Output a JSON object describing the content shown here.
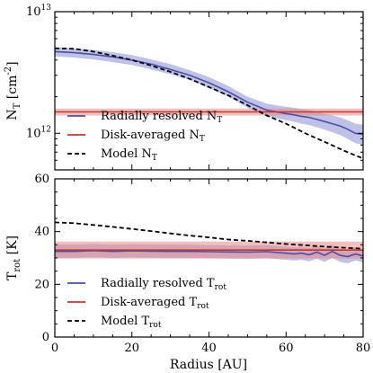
{
  "chart_data": [
    {
      "type": "line",
      "panel": "top",
      "ylabel": "N_T [cm^-2]",
      "yscale": "log",
      "ylim": [
        500000000000,
        10000000000000
      ],
      "xlim": [
        0,
        80
      ],
      "ytick_labels": [
        {
          "value": 10000000000000,
          "base": "10",
          "exp": "13"
        },
        {
          "value": 1000000000000,
          "base": "10",
          "exp": "12"
        }
      ],
      "legend_position": "lower-left",
      "series": [
        {
          "name": "Radially resolved N_T",
          "legend_base": "Radially resolved N",
          "legend_sub": "T",
          "color": "#4b4fa6",
          "band_color": "#8c8ed4",
          "style": "solid",
          "x": [
            0,
            5,
            10,
            15,
            20,
            25,
            30,
            35,
            40,
            45,
            50,
            55,
            60,
            62,
            64,
            66,
            68,
            70,
            72,
            74,
            76,
            78,
            80
          ],
          "y": [
            4700000000000.0,
            4600000000000.0,
            4450000000000.0,
            4250000000000.0,
            4000000000000.0,
            3700000000000.0,
            3350000000000.0,
            3000000000000.0,
            2600000000000.0,
            2200000000000.0,
            1800000000000.0,
            1550000000000.0,
            1450000000000.0,
            1420000000000.0,
            1380000000000.0,
            1350000000000.0,
            1300000000000.0,
            1250000000000.0,
            1200000000000.0,
            1150000000000.0,
            1080000000000.0,
            1000000000000.0,
            980000000000.0
          ],
          "y_low": [
            4300000000000.0,
            4200000000000.0,
            4050000000000.0,
            3850000000000.0,
            3650000000000.0,
            3350000000000.0,
            3050000000000.0,
            2750000000000.0,
            2350000000000.0,
            2000000000000.0,
            1620000000000.0,
            1380000000000.0,
            1280000000000.0,
            1250000000000.0,
            1200000000000.0,
            1170000000000.0,
            1120000000000.0,
            1070000000000.0,
            1020000000000.0,
            970000000000.0,
            900000000000.0,
            830000000000.0,
            800000000000.0
          ],
          "y_high": [
            5100000000000.0,
            5000000000000.0,
            4850000000000.0,
            4650000000000.0,
            4400000000000.0,
            4050000000000.0,
            3700000000000.0,
            3300000000000.0,
            2900000000000.0,
            2450000000000.0,
            2000000000000.0,
            1750000000000.0,
            1650000000000.0,
            1620000000000.0,
            1580000000000.0,
            1550000000000.0,
            1500000000000.0,
            1450000000000.0,
            1400000000000.0,
            1350000000000.0,
            1280000000000.0,
            1200000000000.0,
            1180000000000.0
          ]
        },
        {
          "name": "Disk-averaged N_T",
          "legend_base": "Disk-averaged N",
          "legend_sub": "T",
          "color": "#c0392b",
          "band_color": "#e68a8a",
          "style": "solid",
          "x": [
            0,
            80
          ],
          "y": [
            1500000000000.0,
            1500000000000.0
          ],
          "y_low": [
            1400000000000.0,
            1400000000000.0
          ],
          "y_high": [
            1600000000000.0,
            1600000000000.0
          ]
        },
        {
          "name": "Model N_T",
          "legend_base": "Model N",
          "legend_sub": "T",
          "color": "#000000",
          "style": "dashed",
          "x": [
            0,
            5,
            10,
            15,
            20,
            25,
            30,
            35,
            40,
            45,
            50,
            55,
            60,
            65,
            70,
            75,
            80
          ],
          "y": [
            5000000000000.0,
            4950000000000.0,
            4700000000000.0,
            4350000000000.0,
            4000000000000.0,
            3600000000000.0,
            3200000000000.0,
            2800000000000.0,
            2400000000000.0,
            2050000000000.0,
            1700000000000.0,
            1400000000000.0,
            1200000000000.0,
            1000000000000.0,
            850000000000.0,
            720000000000.0,
            620000000000.0
          ]
        }
      ]
    },
    {
      "type": "line",
      "panel": "bottom",
      "ylabel": "T_rot [K]",
      "xlabel": "Radius [AU]",
      "ylim": [
        0,
        60
      ],
      "xlim": [
        0,
        80
      ],
      "yticks": [
        0,
        20,
        40,
        60
      ],
      "xticks": [
        0,
        20,
        40,
        60,
        80
      ],
      "legend_position": "lower-left",
      "series": [
        {
          "name": "Radially resolved T_rot",
          "legend_base": "Radially resolved T",
          "legend_sub": "rot",
          "color": "#4b4fa6",
          "band_color": "#8c8ed4",
          "style": "solid",
          "x": [
            0,
            5,
            10,
            15,
            20,
            25,
            30,
            35,
            40,
            45,
            50,
            55,
            60,
            62,
            64,
            66,
            68,
            70,
            72,
            74,
            76,
            78,
            80
          ],
          "y": [
            32.5,
            32.5,
            32.8,
            32.5,
            32.7,
            32.6,
            32.5,
            32.5,
            32.4,
            32.3,
            32.2,
            32.4,
            31.8,
            31.5,
            31.8,
            31.2,
            32.2,
            31.0,
            32.5,
            31.0,
            30.5,
            31.5,
            30.8
          ],
          "y_low": [
            30.0,
            30.0,
            30.3,
            30.0,
            30.2,
            30.1,
            30.0,
            30.0,
            29.9,
            29.8,
            29.7,
            29.9,
            29.3,
            29.0,
            29.3,
            28.7,
            29.7,
            28.5,
            30.0,
            28.5,
            28.0,
            29.0,
            28.3
          ],
          "y_high": [
            35.0,
            35.0,
            35.3,
            35.0,
            35.2,
            35.1,
            35.0,
            35.0,
            34.9,
            34.8,
            34.7,
            34.9,
            34.3,
            34.0,
            34.3,
            33.7,
            34.7,
            33.5,
            35.0,
            33.5,
            33.0,
            34.0,
            33.3
          ]
        },
        {
          "name": "Disk-averaged T_rot",
          "legend_base": "Disk-averaged T",
          "legend_sub": "rot",
          "color": "#c0392b",
          "band_color": "#e68a8a",
          "style": "solid",
          "x": [
            0,
            80
          ],
          "y": [
            33.0,
            33.0
          ],
          "y_low": [
            29.8,
            29.8
          ],
          "y_high": [
            36.2,
            36.2
          ]
        },
        {
          "name": "Model T_rot",
          "legend_base": "Model T",
          "legend_sub": "rot",
          "color": "#000000",
          "style": "dashed",
          "x": [
            0,
            5,
            10,
            15,
            20,
            25,
            30,
            35,
            40,
            45,
            50,
            55,
            60,
            65,
            70,
            75,
            80
          ],
          "y": [
            43.5,
            43.2,
            42.5,
            41.8,
            41.0,
            40.2,
            39.3,
            38.5,
            37.8,
            37.0,
            36.5,
            35.9,
            35.3,
            34.8,
            34.3,
            33.9,
            33.5
          ]
        }
      ]
    }
  ]
}
